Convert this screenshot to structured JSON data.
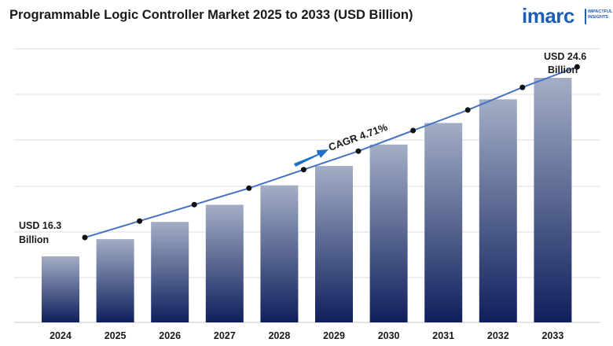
{
  "header": {
    "title": "Programmable Logic Controller Market 2025 to 2033 (USD Billion)"
  },
  "logo": {
    "wordmark": "imarc",
    "tagline": "IMPACTFUL INSIGHTS",
    "color": "#1f5fb3"
  },
  "chart_data": {
    "type": "bar",
    "title": "Programmable Logic Controller Market 2025 to 2033 (USD Billion)",
    "categories": [
      "2024",
      "2025",
      "2026",
      "2027",
      "2028",
      "2029",
      "2030",
      "2031",
      "2032",
      "2033"
    ],
    "values": [
      16.3,
      17.1,
      17.9,
      18.7,
      19.6,
      20.5,
      21.5,
      22.5,
      23.6,
      24.6
    ],
    "trend_line": {
      "values": [
        16.3,
        17.1,
        17.9,
        18.7,
        19.6,
        20.5,
        21.5,
        22.5,
        23.6,
        24.6
      ],
      "color": "#4472c4"
    },
    "annotations": {
      "start_label_line1": "USD 16.3",
      "start_label_line2": "Billion",
      "end_label_line1": "USD 24.6",
      "end_label_line2": "Billion",
      "cagr": "CAGR 4.71%"
    },
    "grid": true,
    "legend": "none",
    "colors": {
      "bar_top": "#a3aec6",
      "bar_bottom": "#0f1f5c",
      "arrow": "#1f6fc9",
      "grid": "#dcdcdc"
    }
  }
}
